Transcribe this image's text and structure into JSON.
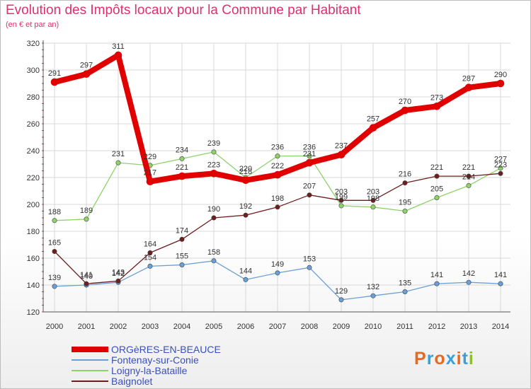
{
  "header": {
    "title": "Evolution des Impôts locaux pour la Commune par Habitant",
    "subtitle": "(en € et par an)"
  },
  "logo": {
    "text": "Proxiti",
    "colors": [
      "#e8681e",
      "#3a9fdc",
      "#e8681e",
      "#3a9fdc",
      "#e8681e",
      "#3a9fdc",
      "#8cbf2c"
    ]
  },
  "chart_data": {
    "type": "line",
    "x": [
      "2000",
      "2001",
      "2002",
      "2003",
      "2004",
      "2005",
      "2006",
      "2007",
      "2008",
      "2009",
      "2010",
      "2011",
      "2012",
      "2013",
      "2014"
    ],
    "ylim": [
      120,
      320
    ],
    "yticks": [
      120,
      140,
      160,
      180,
      200,
      220,
      240,
      260,
      280,
      300,
      320
    ],
    "grid": true,
    "legend_position": "bottom-left",
    "series": [
      {
        "name": "ORGèRES-EN-BEAUCE",
        "color": "#e00000",
        "width": 8,
        "values": [
          291,
          297,
          311,
          217,
          221,
          223,
          218,
          222,
          231,
          237,
          257,
          270,
          273,
          287,
          290
        ]
      },
      {
        "name": "Fontenay-sur-Conie",
        "color": "#6a9fd8",
        "width": 1.3,
        "values": [
          139,
          140,
          142,
          154,
          155,
          158,
          144,
          149,
          153,
          129,
          132,
          135,
          141,
          142,
          141
        ]
      },
      {
        "name": "Loigny-la-Bataille",
        "color": "#8ed26a",
        "width": 1.3,
        "values": [
          188,
          189,
          231,
          229,
          234,
          239,
          220,
          236,
          236,
          199,
          198,
          195,
          205,
          214,
          227
        ]
      },
      {
        "name": "Baignolet",
        "color": "#6e1e1e",
        "width": 1.3,
        "values": [
          165,
          141,
          143,
          164,
          174,
          190,
          192,
          198,
          207,
          203,
          203,
          216,
          221,
          221,
          223
        ]
      }
    ]
  }
}
